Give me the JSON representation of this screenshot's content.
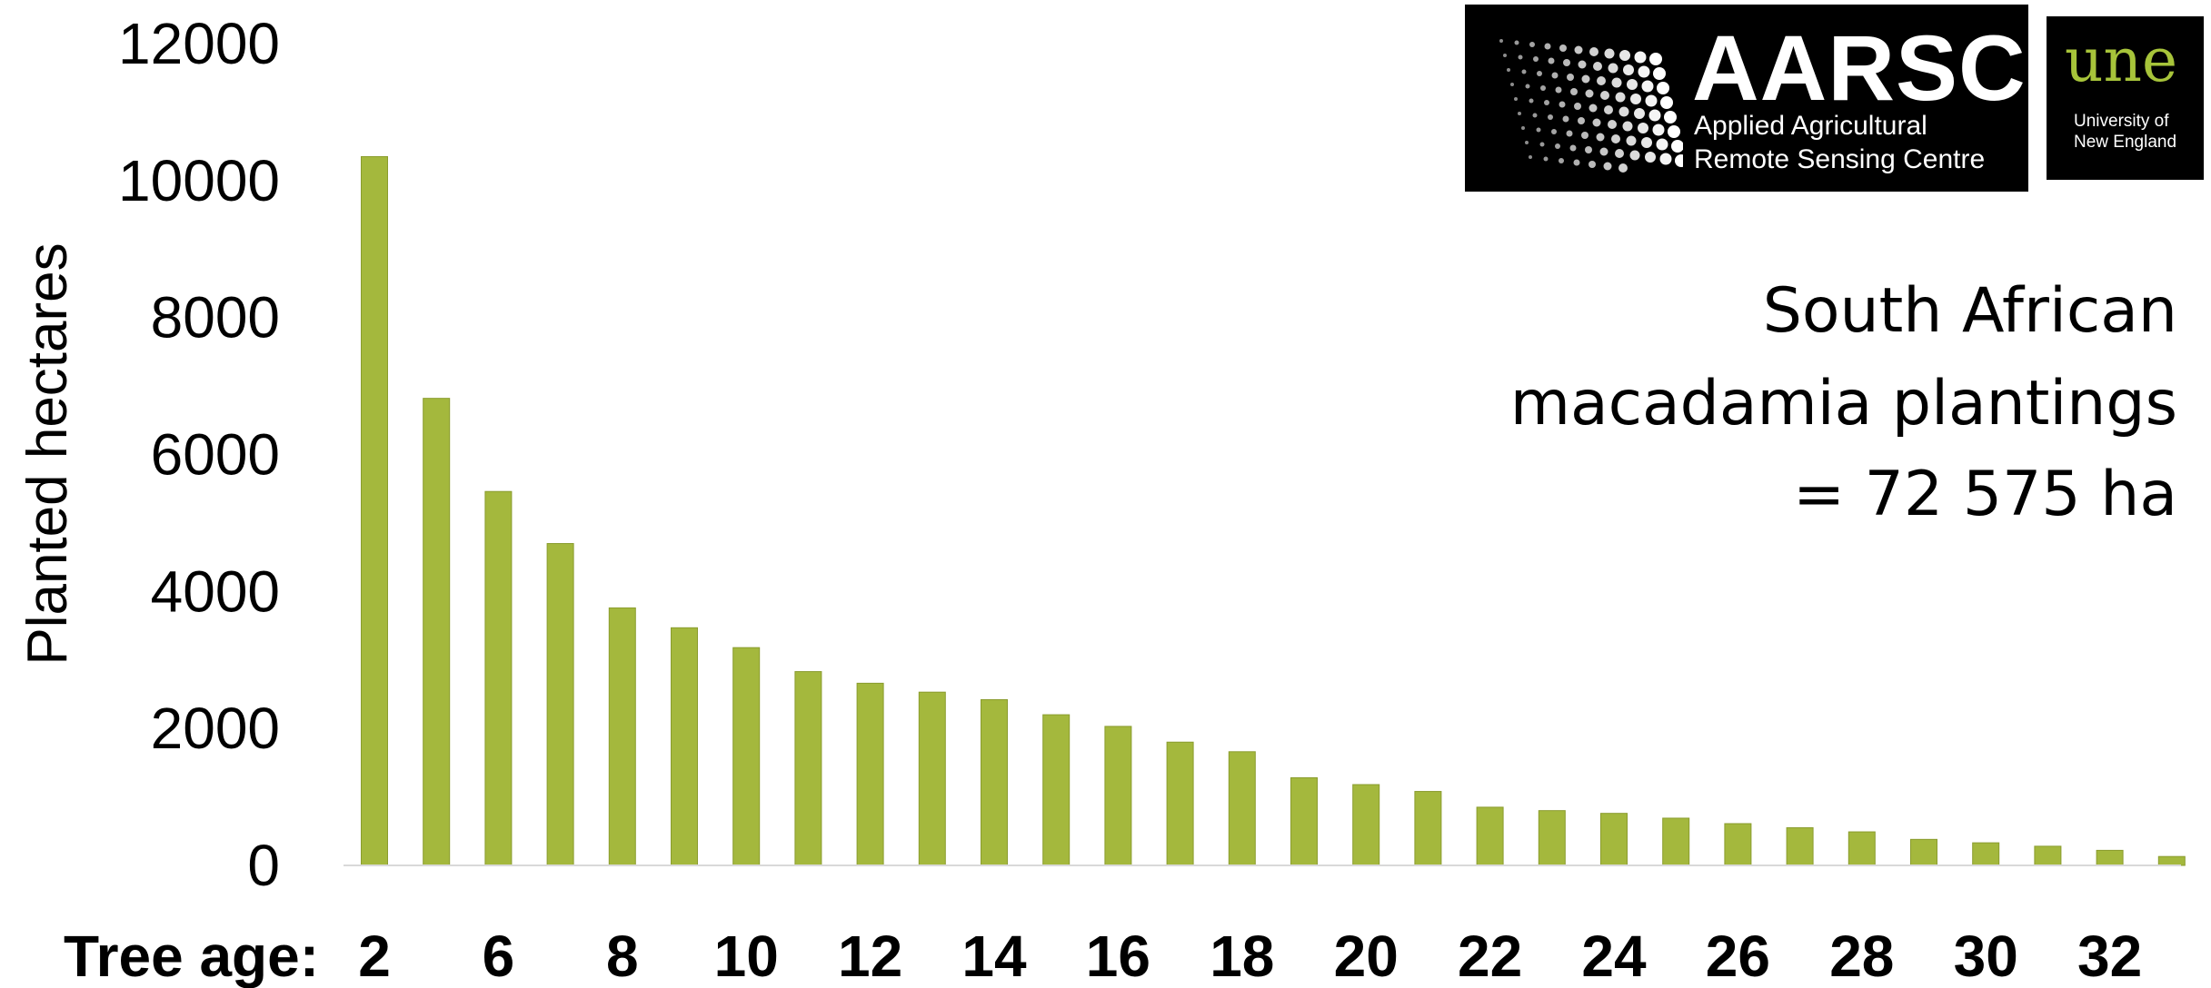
{
  "chart_data": {
    "type": "bar",
    "categories": [
      "2",
      "",
      "6",
      "",
      "8",
      "",
      "10",
      "",
      "12",
      "",
      "14",
      "",
      "16",
      "",
      "18",
      "",
      "20",
      "",
      "22",
      "",
      "24",
      "",
      "26",
      "",
      "28",
      "",
      "30",
      "",
      "32",
      ""
    ],
    "values": [
      10350,
      6820,
      5460,
      4700,
      3760,
      3470,
      3180,
      2830,
      2660,
      2530,
      2420,
      2200,
      2030,
      1800,
      1660,
      1280,
      1180,
      1080,
      850,
      800,
      760,
      690,
      610,
      550,
      490,
      380,
      330,
      280,
      220,
      130
    ],
    "ylim": [
      0,
      12000
    ],
    "yticks": [
      0,
      2000,
      4000,
      6000,
      8000,
      10000,
      12000
    ],
    "ylabel": "Planted hectares",
    "xlabel": "Tree age:",
    "bar_color": "#a4b83d",
    "grid": false
  },
  "annotation": {
    "line1": "South African",
    "line2": "macadamia plantings",
    "line3": "= 72 575 ha"
  },
  "logos": {
    "aarsc": {
      "title": "AARSC",
      "line1": "Applied Agricultural",
      "line2": "Remote Sensing Centre"
    },
    "une": {
      "mark": "une",
      "line1": "University of",
      "line2": "New England"
    }
  }
}
